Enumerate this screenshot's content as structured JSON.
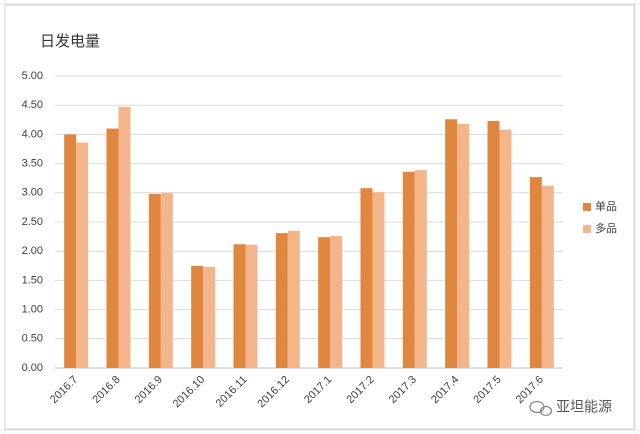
{
  "chart_data": {
    "type": "bar",
    "title": "日发电量",
    "categories": [
      "2016.7",
      "2016.8",
      "2016.9",
      "2016.10",
      "2016.11",
      "2016.12",
      "2017.1",
      "2017.2",
      "2017.3",
      "2017.4",
      "2017.5",
      "2017.6"
    ],
    "series": [
      {
        "name": "单品",
        "color": "#e0873f",
        "values": [
          4.0,
          4.1,
          2.98,
          1.75,
          2.12,
          2.31,
          2.24,
          3.08,
          3.36,
          4.26,
          4.23,
          3.27
        ]
      },
      {
        "name": "多品",
        "color": "#f5b58a",
        "values": [
          3.86,
          4.47,
          3.0,
          1.73,
          2.11,
          2.35,
          2.26,
          3.01,
          3.39,
          4.18,
          4.08,
          3.12
        ]
      }
    ],
    "ylim": [
      0,
      5
    ],
    "yticks": [
      {
        "value": 0,
        "label": "0.00"
      },
      {
        "value": 0.5,
        "label": "0.50"
      },
      {
        "value": 1,
        "label": "1.00"
      },
      {
        "value": 1.5,
        "label": "1.50"
      },
      {
        "value": 2,
        "label": "2.00"
      },
      {
        "value": 2.5,
        "label": "2.50"
      },
      {
        "value": 3,
        "label": "3.00"
      },
      {
        "value": 3.5,
        "label": "3.50"
      },
      {
        "value": 4,
        "label": "4.00"
      },
      {
        "value": 4.5,
        "label": "4.50"
      },
      {
        "value": 5,
        "label": "5.00"
      }
    ],
    "grid": true,
    "legend": "right",
    "watermark": "亚坦能源"
  }
}
